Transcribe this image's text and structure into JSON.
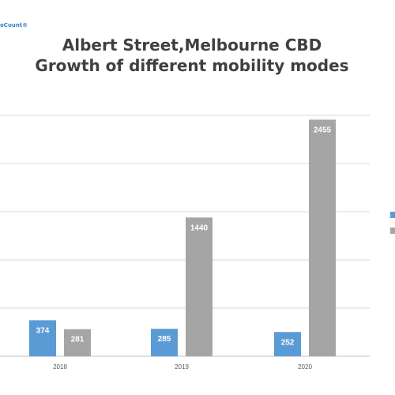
{
  "logo_text": "oCount®",
  "chart_data": {
    "type": "bar",
    "title_line1": "Albert Street,Melbourne CBD",
    "title_line2": "Growth of different mobility modes",
    "categories": [
      "2018",
      "2019",
      "2020"
    ],
    "series": [
      {
        "color": "#5b9bd5",
        "values": [
          374,
          285,
          252
        ]
      },
      {
        "color": "#a5a5a5",
        "values": [
          281,
          1440,
          2455
        ]
      }
    ],
    "ylim": [
      0,
      2500
    ],
    "gridline_values": [
      0,
      500,
      1000,
      1500,
      2000,
      2500
    ],
    "grid": true,
    "legend_position": "right"
  }
}
